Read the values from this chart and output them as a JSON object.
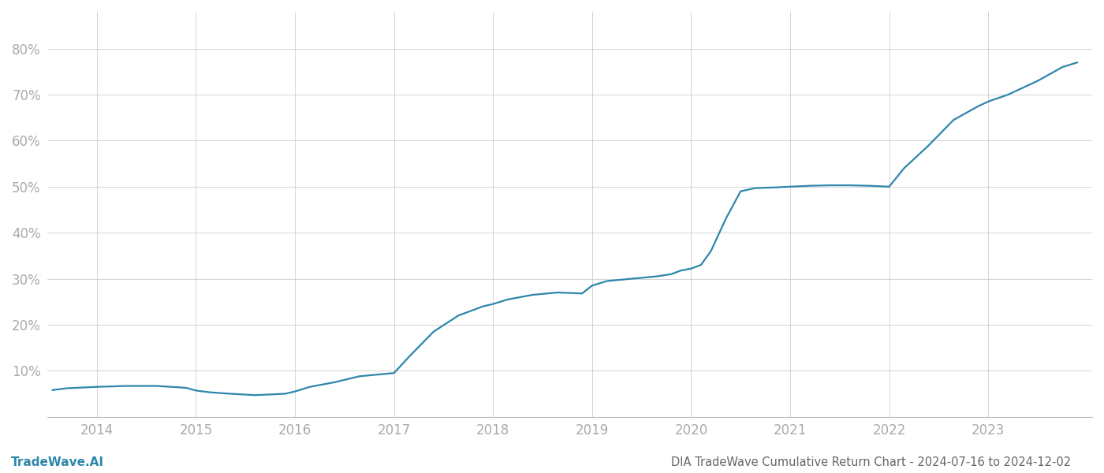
{
  "title": "DIA TradeWave Cumulative Return Chart - 2024-07-16 to 2024-12-02",
  "watermark": "TradeWave.AI",
  "line_color": "#2e86ab",
  "background_color": "#ffffff",
  "grid_color": "#cccccc",
  "x_years": [
    2013.55,
    2013.7,
    2014.0,
    2014.3,
    2014.6,
    2014.9,
    2015.0,
    2015.15,
    2015.35,
    2015.6,
    2015.9,
    2016.0,
    2016.15,
    2016.4,
    2016.65,
    2016.9,
    2017.0,
    2017.15,
    2017.4,
    2017.65,
    2017.9,
    2018.0,
    2018.15,
    2018.4,
    2018.65,
    2018.9,
    2019.0,
    2019.15,
    2019.4,
    2019.65,
    2019.8,
    2019.9,
    2020.0,
    2020.1,
    2020.2,
    2020.35,
    2020.5,
    2020.65,
    2020.8,
    2021.0,
    2021.2,
    2021.4,
    2021.6,
    2021.8,
    2021.9,
    2022.0,
    2022.15,
    2022.4,
    2022.65,
    2022.9,
    2023.0,
    2023.2,
    2023.5,
    2023.75,
    2023.9
  ],
  "y_values": [
    0.058,
    0.062,
    0.065,
    0.067,
    0.067,
    0.063,
    0.057,
    0.053,
    0.05,
    0.047,
    0.05,
    0.055,
    0.065,
    0.075,
    0.088,
    0.093,
    0.095,
    0.13,
    0.185,
    0.22,
    0.24,
    0.245,
    0.255,
    0.265,
    0.27,
    0.268,
    0.285,
    0.295,
    0.3,
    0.305,
    0.31,
    0.318,
    0.322,
    0.33,
    0.36,
    0.43,
    0.49,
    0.497,
    0.498,
    0.5,
    0.502,
    0.503,
    0.503,
    0.502,
    0.501,
    0.5,
    0.54,
    0.59,
    0.645,
    0.675,
    0.685,
    0.7,
    0.73,
    0.76,
    0.77
  ],
  "ylim": [
    0.0,
    0.88
  ],
  "yticks": [
    0.1,
    0.2,
    0.3,
    0.4,
    0.5,
    0.6,
    0.7,
    0.8
  ],
  "xticks": [
    2014,
    2015,
    2016,
    2017,
    2018,
    2019,
    2020,
    2021,
    2022,
    2023
  ],
  "xlim": [
    2013.5,
    2024.05
  ],
  "tick_label_color": "#aaaaaa",
  "title_color": "#666666",
  "watermark_color": "#2e86ab",
  "line_width": 1.6,
  "title_fontsize": 10.5,
  "tick_fontsize": 12,
  "watermark_fontsize": 11
}
